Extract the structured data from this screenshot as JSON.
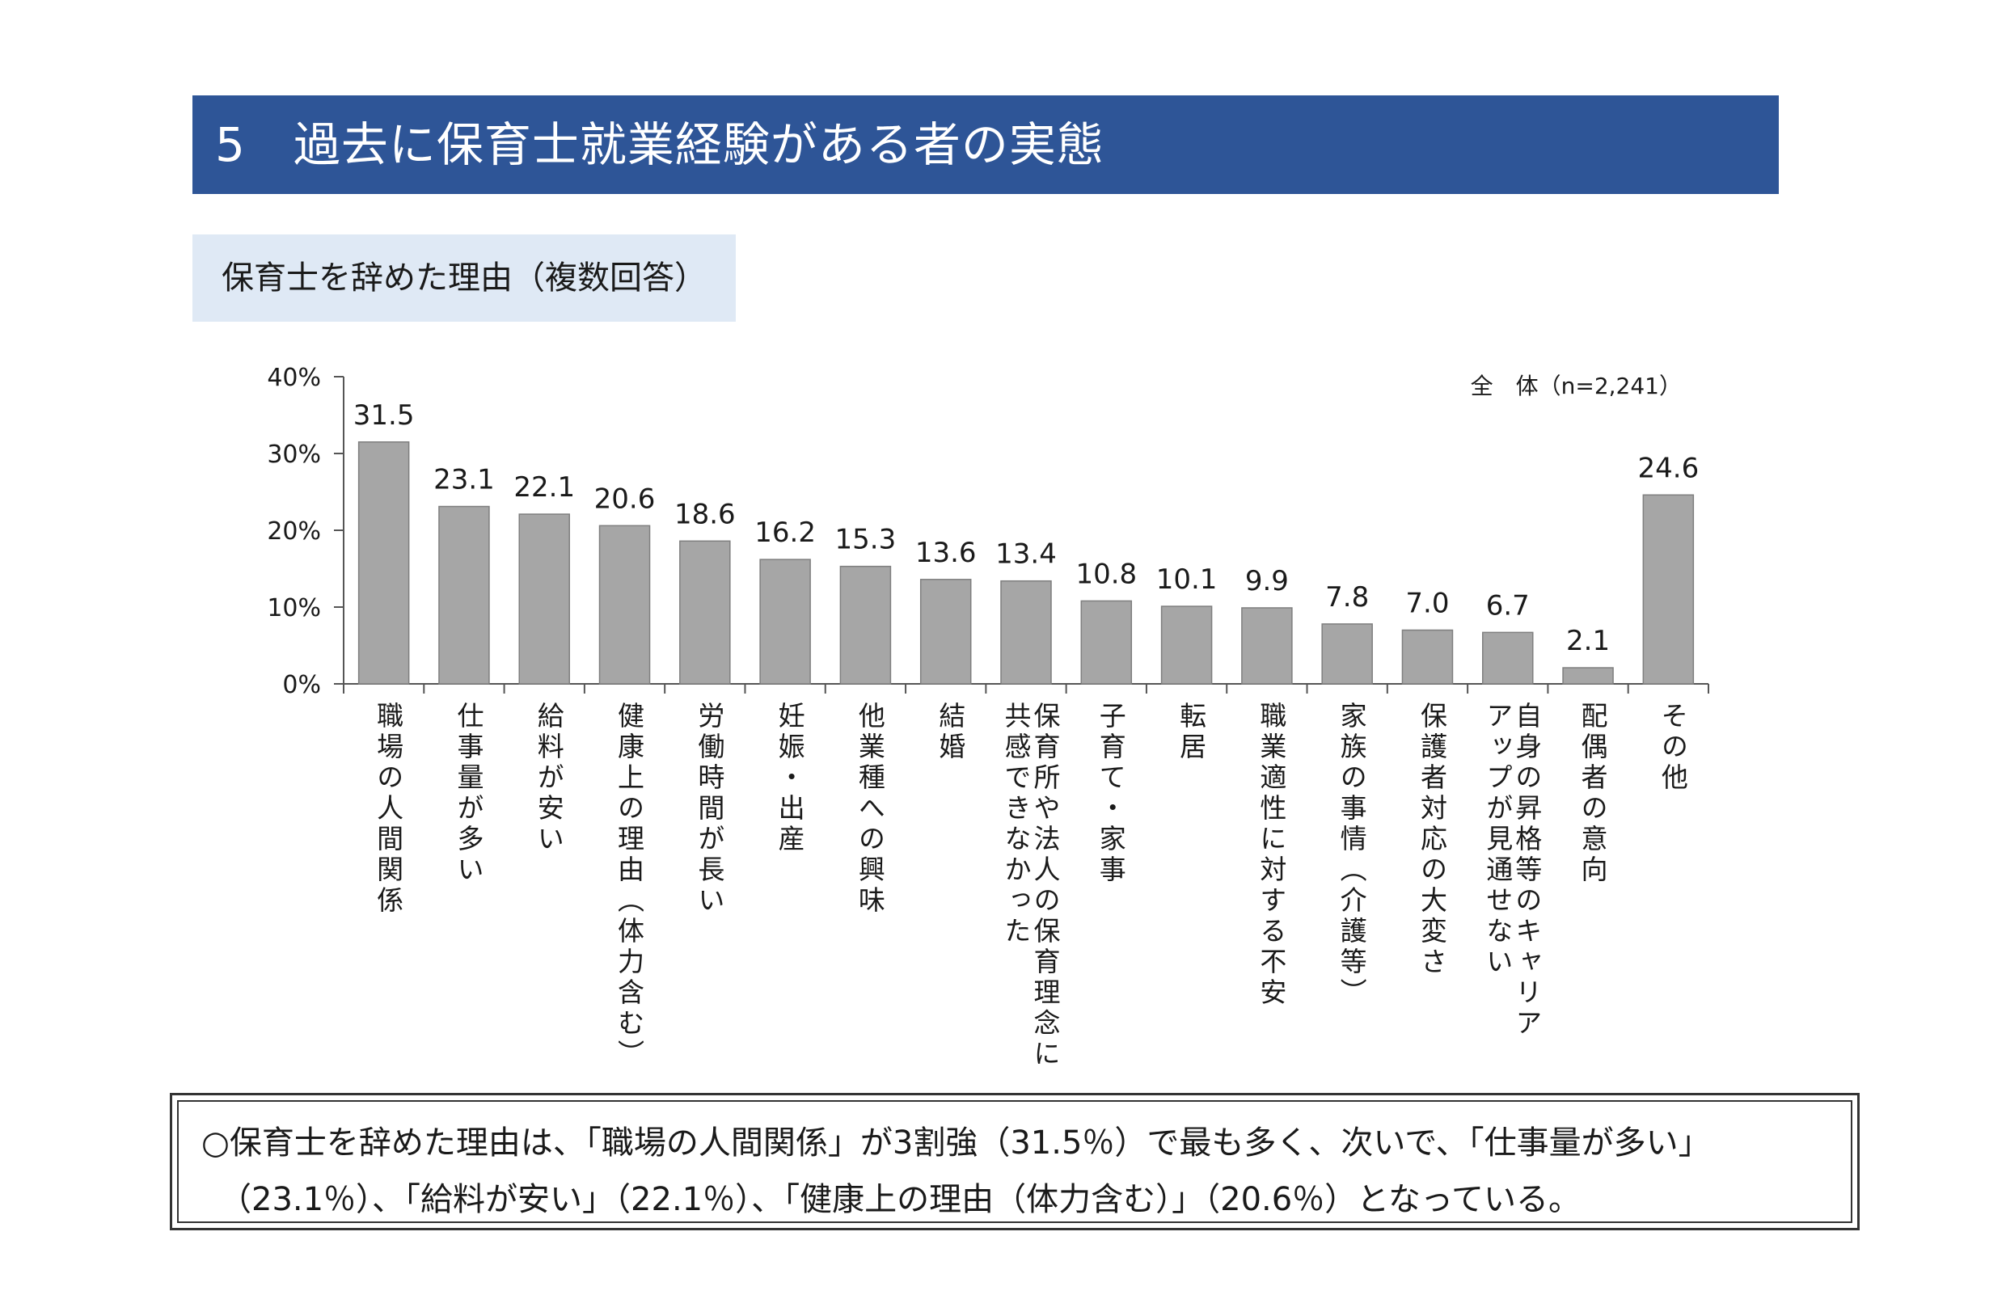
{
  "header": {
    "title": "5　過去に保育士就業経験がある者の実態"
  },
  "subtitle": "保育士を辞めた理由（複数回答）",
  "chart_data": {
    "type": "bar",
    "title": "保育士を辞めた理由（複数回答）",
    "legend": "全　体（n=2,241）",
    "ylim": [
      0,
      40
    ],
    "yticks": [
      0,
      10,
      20,
      30,
      40
    ],
    "ytick_labels": [
      "0%",
      "10%",
      "20%",
      "30%",
      "40%"
    ],
    "categories": [
      "職場の人間関係",
      "仕事量が多い",
      "給料が安い",
      "健康上の理由（体力含む）",
      "労働時間が長い",
      "妊娠・出産",
      "他業種への興味",
      "結婚",
      "保育所や法人の保育理念に共感できなかった",
      "子育て・家事",
      "転居",
      "職業適性に対する不安",
      "家族の事情（介護等）",
      "保護者対応の大変さ",
      "自身の昇格等のキャリアアップが見通せない",
      "配偶者の意向",
      "その他"
    ],
    "category_lines": [
      [
        "職場の人間関係"
      ],
      [
        "仕事量が多い"
      ],
      [
        "給料が安い"
      ],
      [
        "健康上の理由（体力含む）"
      ],
      [
        "労働時間が長い"
      ],
      [
        "妊娠・出産"
      ],
      [
        "他業種への興味"
      ],
      [
        "結婚"
      ],
      [
        "保育所や法人の保育理念に",
        "共感できなかった"
      ],
      [
        "子育て・家事"
      ],
      [
        "転居"
      ],
      [
        "職業適性に対する不安"
      ],
      [
        "家族の事情（介護等）"
      ],
      [
        "保護者対応の大変さ"
      ],
      [
        "自身の昇格等のキャリア",
        "アップが見通せない"
      ],
      [
        "配偶者の意向"
      ],
      [
        "その他"
      ]
    ],
    "values": [
      31.5,
      23.1,
      22.1,
      20.6,
      18.6,
      16.2,
      15.3,
      13.6,
      13.4,
      10.8,
      10.1,
      9.9,
      7.8,
      7.0,
      6.7,
      2.1,
      24.6
    ],
    "value_labels": [
      "31.5",
      "23.1",
      "22.1",
      "20.6",
      "18.6",
      "16.2",
      "15.3",
      "13.6",
      "13.4",
      "10.8",
      "10.1",
      "9.9",
      "7.8",
      "7.0",
      "6.7",
      "2.1",
      "24.6"
    ],
    "bar_color": "#a6a6a6"
  },
  "summary": {
    "line1": "○保育士を辞めた理由は、「職場の人間関係」が3割強（31.5％）で最も多く、次いで、「仕事量が多い」",
    "line2": "（23.1％）、「給料が安い」（22.1％）、「健康上の理由（体力含む）」（20.6％）となっている。"
  }
}
